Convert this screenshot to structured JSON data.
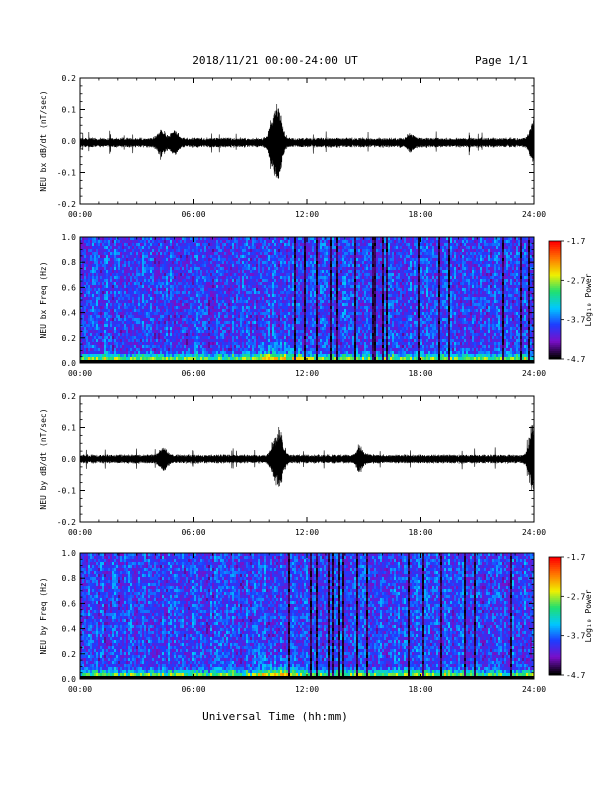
{
  "header": {
    "title": "2018/11/21  00:00-24:00 UT",
    "page": "Page 1/1"
  },
  "xaxis": {
    "label": "Universal Time (hh:mm)",
    "ticks": [
      "00:00",
      "06:00",
      "12:00",
      "18:00",
      "24:00"
    ],
    "range_hours": [
      0,
      24
    ]
  },
  "colorbar": {
    "label": "Log₁₀ Power",
    "ticks": [
      "-1.7",
      "-2.7",
      "-3.7",
      "-4.7"
    ],
    "range": [
      -4.7,
      -1.7
    ],
    "colormap": [
      "#000000",
      "#7a0fc8",
      "#1e3cff",
      "#00c8ff",
      "#20e070",
      "#f0f000",
      "#ff7800",
      "#ff0000"
    ]
  },
  "chart_data": [
    {
      "type": "line",
      "ylabel": "NEU bx dB/dt (nT/sec)",
      "ylim": [
        -0.2,
        0.2
      ],
      "yticks": [
        "0.2",
        "0.1",
        "0.0",
        "-0.1",
        "-0.2"
      ],
      "x_range_hours": [
        0,
        24
      ],
      "baseline": -0.005,
      "noise_amplitude": 0.012,
      "bursts": [
        {
          "t_hours": 4.3,
          "amp": 0.035
        },
        {
          "t_hours": 5.0,
          "amp": 0.03
        },
        {
          "t_hours": 10.2,
          "amp": 0.06
        },
        {
          "t_hours": 10.5,
          "amp": 0.09
        },
        {
          "t_hours": 17.5,
          "amp": 0.02
        },
        {
          "t_hours": 23.95,
          "amp": 0.06
        }
      ],
      "peaks": {
        "max": 0.08,
        "min": -0.105
      }
    },
    {
      "type": "heatmap",
      "ylabel": "NEU bx Freq (Hz)",
      "ylim": [
        0.0,
        1.0
      ],
      "yticks": [
        "1.0",
        "0.8",
        "0.6",
        "0.4",
        "0.2",
        "0.0"
      ],
      "x_range_hours": [
        0,
        24
      ],
      "z_range": [
        -4.7,
        -1.7
      ],
      "low_freq_peak_power": -2.2,
      "background_power": -3.9
    },
    {
      "type": "line",
      "ylabel": "NEU by dB/dt (nT/sec)",
      "ylim": [
        -0.2,
        0.2
      ],
      "yticks": [
        "0.2",
        "0.1",
        "0.0",
        "-0.1",
        "-0.2"
      ],
      "x_range_hours": [
        0,
        24
      ],
      "baseline": 0.0,
      "noise_amplitude": 0.011,
      "bursts": [
        {
          "t_hours": 4.4,
          "amp": 0.03
        },
        {
          "t_hours": 10.3,
          "amp": 0.05
        },
        {
          "t_hours": 10.6,
          "amp": 0.06
        },
        {
          "t_hours": 14.8,
          "amp": 0.03
        },
        {
          "t_hours": 23.95,
          "amp": 0.1
        }
      ],
      "peaks": {
        "max": 0.11,
        "min": -0.07
      }
    },
    {
      "type": "heatmap",
      "ylabel": "NEU by Freq (Hz)",
      "ylim": [
        0.0,
        1.0
      ],
      "yticks": [
        "1.0",
        "0.8",
        "0.6",
        "0.4",
        "0.2",
        "0.0"
      ],
      "x_range_hours": [
        0,
        24
      ],
      "z_range": [
        -4.7,
        -1.7
      ],
      "low_freq_peak_power": -2.3,
      "background_power": -3.9
    }
  ]
}
